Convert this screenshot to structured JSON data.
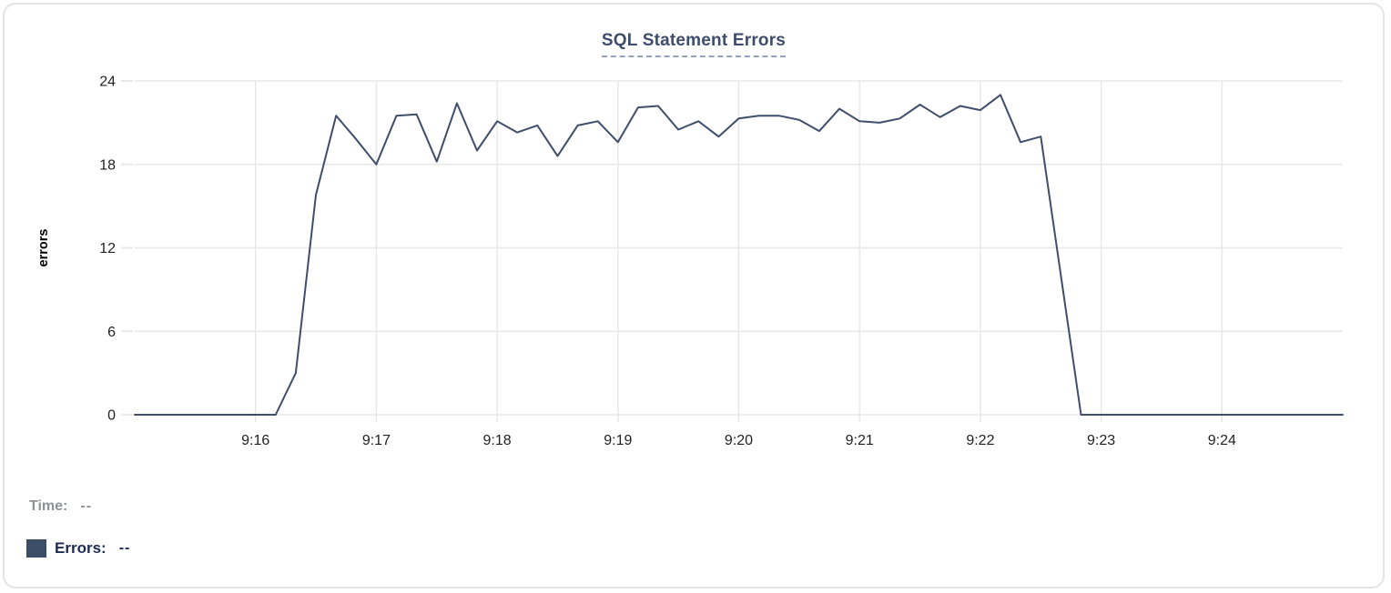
{
  "card": {
    "title": "SQL Statement Errors"
  },
  "readout": {
    "time_label": "Time:",
    "time_value": "--",
    "errors_label": "Errors:",
    "errors_value": "--"
  },
  "colors": {
    "line": "#3e4e6b",
    "title": "#3d4d6b",
    "title_underline": "#91a2c4",
    "grid": "#e8e8e8",
    "tick_text": "#222222",
    "axis_label": "#000000",
    "time_text": "#8e9196",
    "errors_text": "#1c2b53",
    "swatch": "#3c4d68",
    "card_border": "#e3e4e6"
  },
  "chart_data": {
    "type": "line",
    "title": "SQL Statement Errors",
    "xlabel": "",
    "ylabel": "errors",
    "series_name": "Errors",
    "interval_seconds": 10,
    "x_range": [
      "9:15:00",
      "9:25:00"
    ],
    "ylim": [
      0,
      24
    ],
    "yticks": [
      0,
      6,
      12,
      18,
      24
    ],
    "xticks": [
      "9:16",
      "9:17",
      "9:18",
      "9:19",
      "9:20",
      "9:21",
      "9:22",
      "9:23",
      "9:24"
    ],
    "grid": true,
    "legend_position": "bottom-left",
    "times": [
      "9:15:00",
      "9:15:10",
      "9:15:20",
      "9:15:30",
      "9:15:40",
      "9:15:50",
      "9:16:00",
      "9:16:10",
      "9:16:20",
      "9:16:30",
      "9:16:40",
      "9:16:50",
      "9:17:00",
      "9:17:10",
      "9:17:20",
      "9:17:30",
      "9:17:40",
      "9:17:50",
      "9:18:00",
      "9:18:10",
      "9:18:20",
      "9:18:30",
      "9:18:40",
      "9:18:50",
      "9:19:00",
      "9:19:10",
      "9:19:20",
      "9:19:30",
      "9:19:40",
      "9:19:50",
      "9:20:00",
      "9:20:10",
      "9:20:20",
      "9:20:30",
      "9:20:40",
      "9:20:50",
      "9:21:00",
      "9:21:10",
      "9:21:20",
      "9:21:30",
      "9:21:40",
      "9:21:50",
      "9:22:00",
      "9:22:10",
      "9:22:20",
      "9:22:30",
      "9:22:40",
      "9:22:50",
      "9:23:00",
      "9:23:10",
      "9:23:20",
      "9:23:30",
      "9:23:40",
      "9:23:50",
      "9:24:00",
      "9:24:10",
      "9:24:20",
      "9:24:30",
      "9:24:40",
      "9:24:50",
      "9:25:00"
    ],
    "values": [
      0,
      0,
      0,
      0,
      0,
      0,
      0,
      0,
      3,
      15.8,
      21.5,
      19.8,
      18,
      21.5,
      21.6,
      18.2,
      22.4,
      19,
      21.1,
      20.3,
      20.8,
      18.6,
      20.8,
      21.1,
      19.6,
      22.1,
      22.2,
      20.5,
      21.1,
      20,
      21.3,
      21.5,
      21.5,
      21.2,
      20.4,
      22.0,
      21.1,
      21.0,
      21.3,
      22.3,
      21.4,
      22.2,
      21.9,
      23,
      19.6,
      20,
      10,
      0,
      0,
      0,
      0,
      0,
      0,
      0,
      0,
      0,
      0,
      0,
      0,
      0,
      0
    ]
  }
}
